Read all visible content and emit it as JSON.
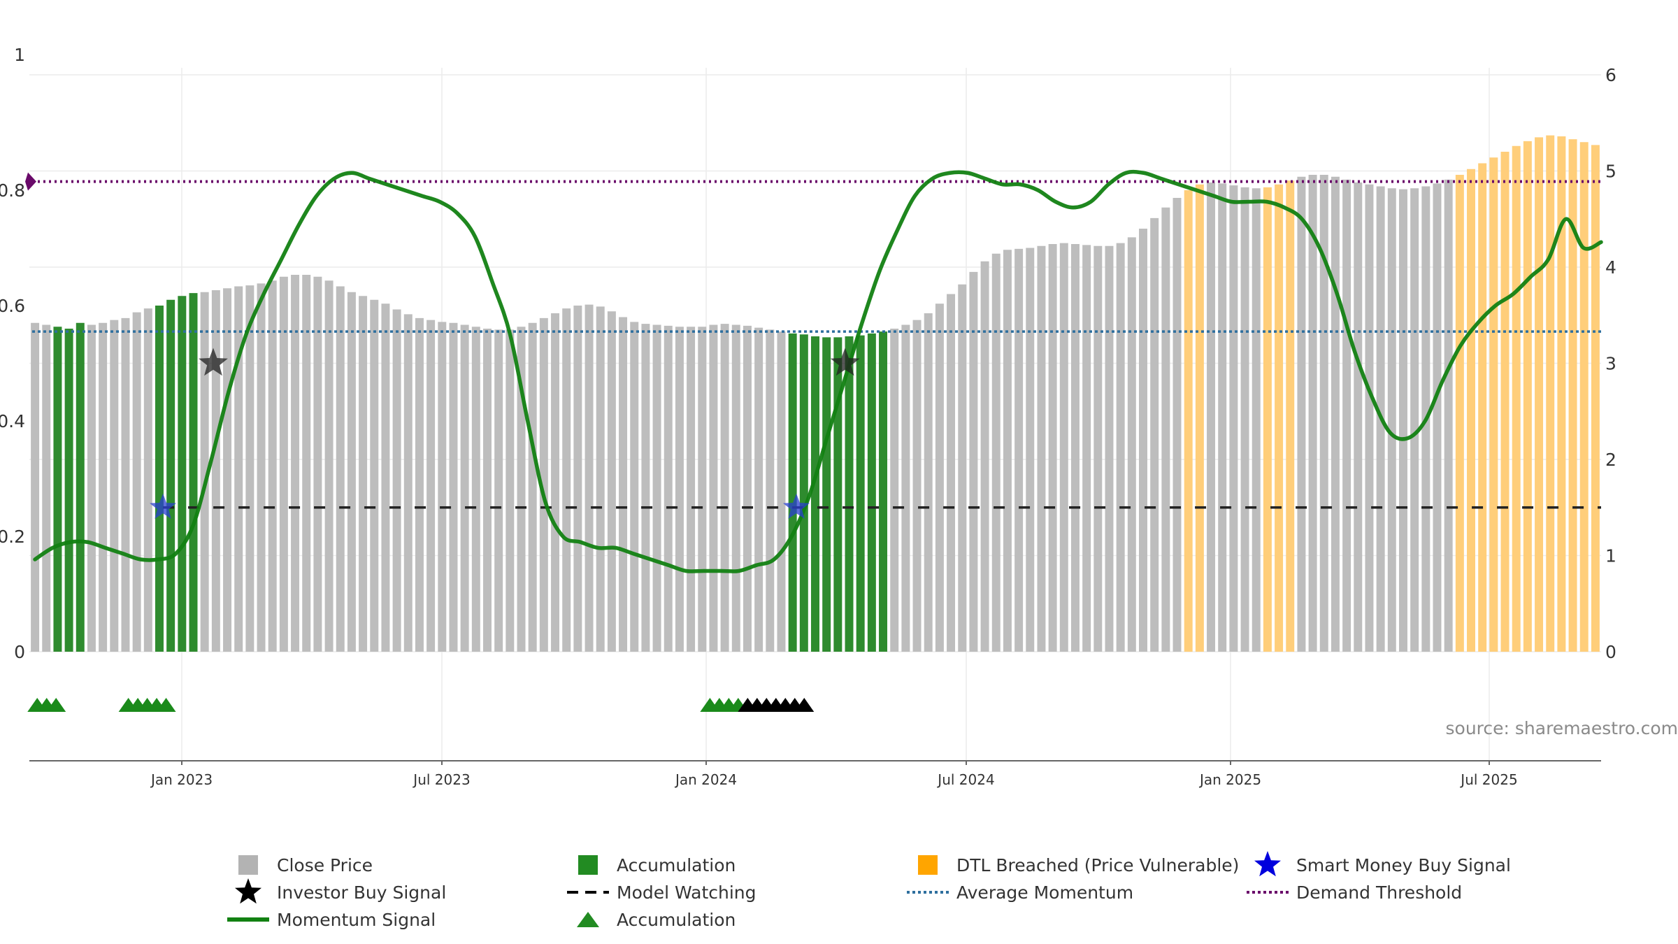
{
  "chart_data": {
    "type": "bar",
    "title": "",
    "left_axis": {
      "ylim": [
        0,
        1
      ],
      "tick_labels": [
        "0",
        "0.2",
        "0.4",
        "0.6",
        "0.8",
        "1"
      ]
    },
    "right_axis": {
      "ylim": [
        0,
        6
      ],
      "tick_labels": [
        "0",
        "1",
        "2",
        "3",
        "4",
        "5",
        "6"
      ]
    },
    "x_axis": {
      "tick_labels": [
        "Jan 2023",
        "Jul 2023",
        "Jan 2024",
        "Jul 2024",
        "Jan 2025",
        "Jul 2025"
      ]
    },
    "close_price_bars": [
      [
        3.42,
        "g"
      ],
      [
        3.4,
        "g"
      ],
      [
        3.38,
        "a"
      ],
      [
        3.36,
        "a"
      ],
      [
        3.42,
        "a"
      ],
      [
        3.4,
        "g"
      ],
      [
        3.42,
        "g"
      ],
      [
        3.45,
        "g"
      ],
      [
        3.47,
        "g"
      ],
      [
        3.53,
        "g"
      ],
      [
        3.57,
        "g"
      ],
      [
        3.6,
        "a"
      ],
      [
        3.66,
        "a"
      ],
      [
        3.7,
        "a"
      ],
      [
        3.73,
        "a"
      ],
      [
        3.74,
        "g"
      ],
      [
        3.76,
        "g"
      ],
      [
        3.78,
        "g"
      ],
      [
        3.8,
        "g"
      ],
      [
        3.81,
        "g"
      ],
      [
        3.83,
        "g"
      ],
      [
        3.86,
        "g"
      ],
      [
        3.9,
        "g"
      ],
      [
        3.92,
        "g"
      ],
      [
        3.92,
        "g"
      ],
      [
        3.9,
        "g"
      ],
      [
        3.86,
        "g"
      ],
      [
        3.8,
        "g"
      ],
      [
        3.74,
        "g"
      ],
      [
        3.7,
        "g"
      ],
      [
        3.66,
        "g"
      ],
      [
        3.62,
        "g"
      ],
      [
        3.56,
        "g"
      ],
      [
        3.51,
        "g"
      ],
      [
        3.47,
        "g"
      ],
      [
        3.45,
        "g"
      ],
      [
        3.43,
        "g"
      ],
      [
        3.42,
        "g"
      ],
      [
        3.4,
        "g"
      ],
      [
        3.38,
        "g"
      ],
      [
        3.36,
        "g"
      ],
      [
        3.35,
        "g"
      ],
      [
        3.35,
        "g"
      ],
      [
        3.38,
        "g"
      ],
      [
        3.42,
        "g"
      ],
      [
        3.47,
        "g"
      ],
      [
        3.52,
        "g"
      ],
      [
        3.57,
        "g"
      ],
      [
        3.6,
        "g"
      ],
      [
        3.61,
        "g"
      ],
      [
        3.59,
        "g"
      ],
      [
        3.54,
        "g"
      ],
      [
        3.48,
        "g"
      ],
      [
        3.43,
        "g"
      ],
      [
        3.41,
        "g"
      ],
      [
        3.4,
        "g"
      ],
      [
        3.39,
        "g"
      ],
      [
        3.38,
        "g"
      ],
      [
        3.38,
        "g"
      ],
      [
        3.38,
        "g"
      ],
      [
        3.4,
        "g"
      ],
      [
        3.41,
        "g"
      ],
      [
        3.4,
        "g"
      ],
      [
        3.39,
        "g"
      ],
      [
        3.37,
        "g"
      ],
      [
        3.35,
        "g"
      ],
      [
        3.33,
        "g"
      ],
      [
        3.31,
        "a"
      ],
      [
        3.3,
        "a"
      ],
      [
        3.28,
        "a"
      ],
      [
        3.27,
        "a"
      ],
      [
        3.27,
        "a"
      ],
      [
        3.28,
        "a"
      ],
      [
        3.29,
        "a"
      ],
      [
        3.31,
        "a"
      ],
      [
        3.33,
        "a"
      ],
      [
        3.36,
        "g"
      ],
      [
        3.4,
        "g"
      ],
      [
        3.45,
        "g"
      ],
      [
        3.52,
        "g"
      ],
      [
        3.62,
        "g"
      ],
      [
        3.72,
        "g"
      ],
      [
        3.82,
        "g"
      ],
      [
        3.95,
        "g"
      ],
      [
        4.06,
        "g"
      ],
      [
        4.14,
        "g"
      ],
      [
        4.18,
        "g"
      ],
      [
        4.19,
        "g"
      ],
      [
        4.2,
        "g"
      ],
      [
        4.22,
        "g"
      ],
      [
        4.24,
        "g"
      ],
      [
        4.25,
        "g"
      ],
      [
        4.24,
        "g"
      ],
      [
        4.23,
        "g"
      ],
      [
        4.22,
        "g"
      ],
      [
        4.22,
        "g"
      ],
      [
        4.25,
        "g"
      ],
      [
        4.31,
        "g"
      ],
      [
        4.4,
        "g"
      ],
      [
        4.51,
        "g"
      ],
      [
        4.62,
        "g"
      ],
      [
        4.72,
        "g"
      ],
      [
        4.8,
        "o"
      ],
      [
        4.86,
        "o"
      ],
      [
        4.88,
        "g"
      ],
      [
        4.87,
        "g"
      ],
      [
        4.85,
        "g"
      ],
      [
        4.83,
        "g"
      ],
      [
        4.82,
        "g"
      ],
      [
        4.83,
        "o"
      ],
      [
        4.86,
        "o"
      ],
      [
        4.9,
        "o"
      ],
      [
        4.94,
        "g"
      ],
      [
        4.96,
        "g"
      ],
      [
        4.96,
        "g"
      ],
      [
        4.94,
        "g"
      ],
      [
        4.91,
        "g"
      ],
      [
        4.88,
        "g"
      ],
      [
        4.86,
        "g"
      ],
      [
        4.84,
        "g"
      ],
      [
        4.82,
        "g"
      ],
      [
        4.81,
        "g"
      ],
      [
        4.82,
        "g"
      ],
      [
        4.84,
        "g"
      ],
      [
        4.87,
        "g"
      ],
      [
        4.91,
        "g"
      ],
      [
        4.96,
        "o"
      ],
      [
        5.02,
        "o"
      ],
      [
        5.08,
        "o"
      ],
      [
        5.14,
        "o"
      ],
      [
        5.2,
        "o"
      ],
      [
        5.26,
        "o"
      ],
      [
        5.31,
        "o"
      ],
      [
        5.35,
        "o"
      ],
      [
        5.37,
        "o"
      ],
      [
        5.36,
        "o"
      ],
      [
        5.33,
        "o"
      ],
      [
        5.3,
        "o"
      ],
      [
        5.27,
        "o"
      ]
    ],
    "bar_category_legend": {
      "g": "Close Price",
      "a": "Accumulation",
      "o": "DTL Breached (Price Vulnerable)"
    },
    "momentum_signal": [
      0.16,
      0.18,
      0.19,
      0.19,
      0.18,
      0.17,
      0.16,
      0.16,
      0.17,
      0.22,
      0.33,
      0.45,
      0.55,
      0.62,
      0.68,
      0.74,
      0.79,
      0.82,
      0.83,
      0.82,
      0.81,
      0.8,
      0.79,
      0.78,
      0.76,
      0.72,
      0.64,
      0.55,
      0.4,
      0.26,
      0.2,
      0.19,
      0.18,
      0.18,
      0.17,
      0.16,
      0.15,
      0.14,
      0.14,
      0.14,
      0.14,
      0.15,
      0.16,
      0.2,
      0.27,
      0.37,
      0.47,
      0.57,
      0.66,
      0.73,
      0.79,
      0.82,
      0.83,
      0.83,
      0.82,
      0.81,
      0.81,
      0.8,
      0.78,
      0.77,
      0.78,
      0.81,
      0.83,
      0.83,
      0.82,
      0.81,
      0.8,
      0.79,
      0.78,
      0.78,
      0.78,
      0.77,
      0.75,
      0.7,
      0.62,
      0.52,
      0.44,
      0.38,
      0.37,
      0.4,
      0.47,
      0.53,
      0.57,
      0.6,
      0.62,
      0.65,
      0.68,
      0.75,
      0.7,
      0.71
    ],
    "investor_buy_signals": [
      [
        0.117,
        0.5
      ],
      [
        0.519,
        0.5
      ]
    ],
    "smart_money_buy_signals": [
      [
        0.085,
        0.25
      ],
      [
        0.488,
        0.25
      ]
    ],
    "model_watching_level": 0.25,
    "average_momentum": 0.555,
    "demand_threshold": 0.815,
    "accumulation_markers": [
      [
        0.005,
        "green"
      ],
      [
        0.011,
        "green"
      ],
      [
        0.017,
        "green"
      ],
      [
        0.063,
        "green"
      ],
      [
        0.069,
        "green"
      ],
      [
        0.075,
        "green"
      ],
      [
        0.081,
        "green"
      ],
      [
        0.087,
        "green"
      ],
      [
        0.433,
        "green"
      ],
      [
        0.439,
        "green"
      ],
      [
        0.445,
        "green"
      ],
      [
        0.451,
        "green"
      ],
      [
        0.457,
        "black"
      ],
      [
        0.463,
        "black"
      ],
      [
        0.469,
        "black"
      ],
      [
        0.475,
        "black"
      ],
      [
        0.481,
        "black"
      ],
      [
        0.487,
        "black"
      ],
      [
        0.493,
        "black"
      ]
    ],
    "legend": [
      {
        "label": "Close Price",
        "symbol": "square",
        "color": "#b3b3b3"
      },
      {
        "label": "Accumulation",
        "symbol": "square",
        "color": "#228b22"
      },
      {
        "label": "DTL Breached (Price Vulnerable)",
        "symbol": "square",
        "color": "#ffa500"
      },
      {
        "label": "Smart Money Buy Signal",
        "symbol": "star",
        "color": "#0000dd"
      },
      {
        "label": "Investor Buy Signal",
        "symbol": "star",
        "color": "#000000"
      },
      {
        "label": "Model Watching",
        "symbol": "dash",
        "color": "#000000"
      },
      {
        "label": "Average Momentum",
        "symbol": "dotted",
        "color": "#2e6f9e"
      },
      {
        "label": "Demand Threshold",
        "symbol": "dotted",
        "color": "#6a0a6a"
      },
      {
        "label": "Momentum Signal",
        "symbol": "line",
        "color": "#128112"
      },
      {
        "label": "Accumulation",
        "symbol": "triangle",
        "color": "#228b22"
      }
    ],
    "source": "source: sharemaestro.com"
  },
  "colors": {
    "grey_bar": "#bdbdbd",
    "accumulation": "#2e8b2e",
    "dtl": "#ffce7a",
    "momentum": "#128112",
    "avg_momentum": "#2e6f9e",
    "demand": "#6a0a6a",
    "watch": "#222222",
    "grid": "#ececec"
  }
}
